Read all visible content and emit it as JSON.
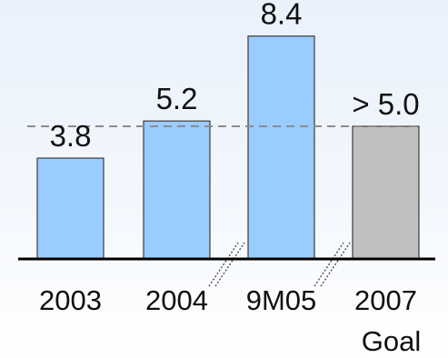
{
  "chart_data": {
    "type": "bar",
    "categories": [
      "2003",
      "2004",
      "9M05",
      "2007"
    ],
    "category_sublabels": [
      "",
      "",
      "",
      "Goal"
    ],
    "values": [
      3.8,
      5.2,
      8.4,
      5.0
    ],
    "value_labels": [
      "3.8",
      "5.2",
      "8.4",
      "> 5.0"
    ],
    "reference_line": 5.0,
    "ylim": [
      0,
      9.2
    ],
    "title": "",
    "xlabel": "",
    "ylabel": "",
    "grid": false,
    "axis_breaks_between": [
      [
        "2004",
        "9M05"
      ],
      [
        "9M05",
        "2007"
      ]
    ],
    "colors": {
      "actual_bar": "#99ccff",
      "goal_bar": "#c0c0c0",
      "bar_outline": "#3b3b3b",
      "reference_line": "#8c8c8c",
      "axis": "#000000"
    }
  }
}
